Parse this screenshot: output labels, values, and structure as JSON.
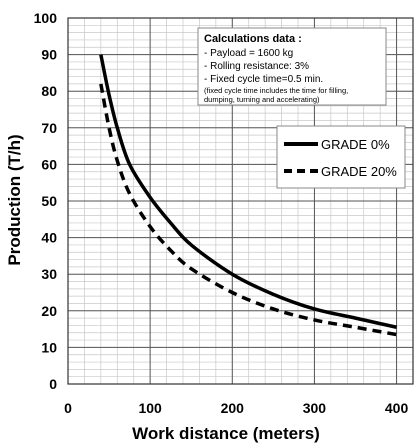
{
  "chart_data": {
    "type": "line",
    "xlabel": "Work distance (meters)",
    "ylabel": "Production (T/h)",
    "xlim": [
      0,
      420
    ],
    "ylim": [
      0,
      100
    ],
    "x_ticks": [
      "0",
      "100",
      "200",
      "300",
      "400"
    ],
    "y_ticks": [
      "0",
      "10",
      "20",
      "30",
      "40",
      "50",
      "60",
      "70",
      "80",
      "90",
      "100"
    ],
    "grid": true,
    "legend_position": "right",
    "series": [
      {
        "name": "GRADE 0%",
        "style": "solid",
        "color": "#000000",
        "x": [
          40,
          50,
          60,
          75,
          100,
          125,
          150,
          200,
          250,
          300,
          350,
          400
        ],
        "y": [
          90,
          79,
          70,
          60,
          51,
          44,
          38,
          30,
          24.5,
          20.5,
          18,
          15.5
        ]
      },
      {
        "name": "GRADE 20%",
        "style": "dashed",
        "color": "#000000",
        "x": [
          40,
          50,
          60,
          75,
          100,
          125,
          150,
          200,
          250,
          300,
          350,
          400
        ],
        "y": [
          82,
          70,
          61,
          52,
          43,
          36.5,
          31.5,
          25,
          20.5,
          17.5,
          15.5,
          13.5
        ]
      }
    ],
    "annotation": {
      "title": "Calculations data :",
      "lines": [
        "- Payload = 1600 kg",
        "- Rolling resistance: 3%",
        "- Fixed cycle time=0.5 min."
      ],
      "note_lines": [
        "(fixed cycle time includes the time for filling,",
        "dumping, turning and accelerating)"
      ]
    }
  }
}
